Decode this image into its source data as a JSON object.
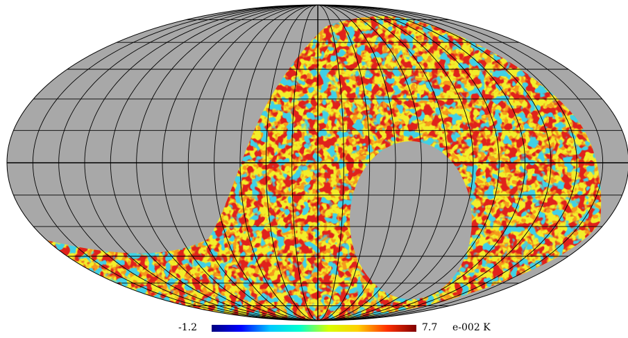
{
  "map": {
    "projection": "mollweide",
    "mask_color": "#a8a8a8",
    "grid_color": "#000000"
  },
  "colorbar": {
    "min_label": "-1.2",
    "max_label": "7.7",
    "unit_label": "e-002 K",
    "colors": [
      "#00007f",
      "#0000ff",
      "#00c8ff",
      "#00ffd0",
      "#d8ff00",
      "#ffd000",
      "#ff3000",
      "#800000"
    ]
  }
}
